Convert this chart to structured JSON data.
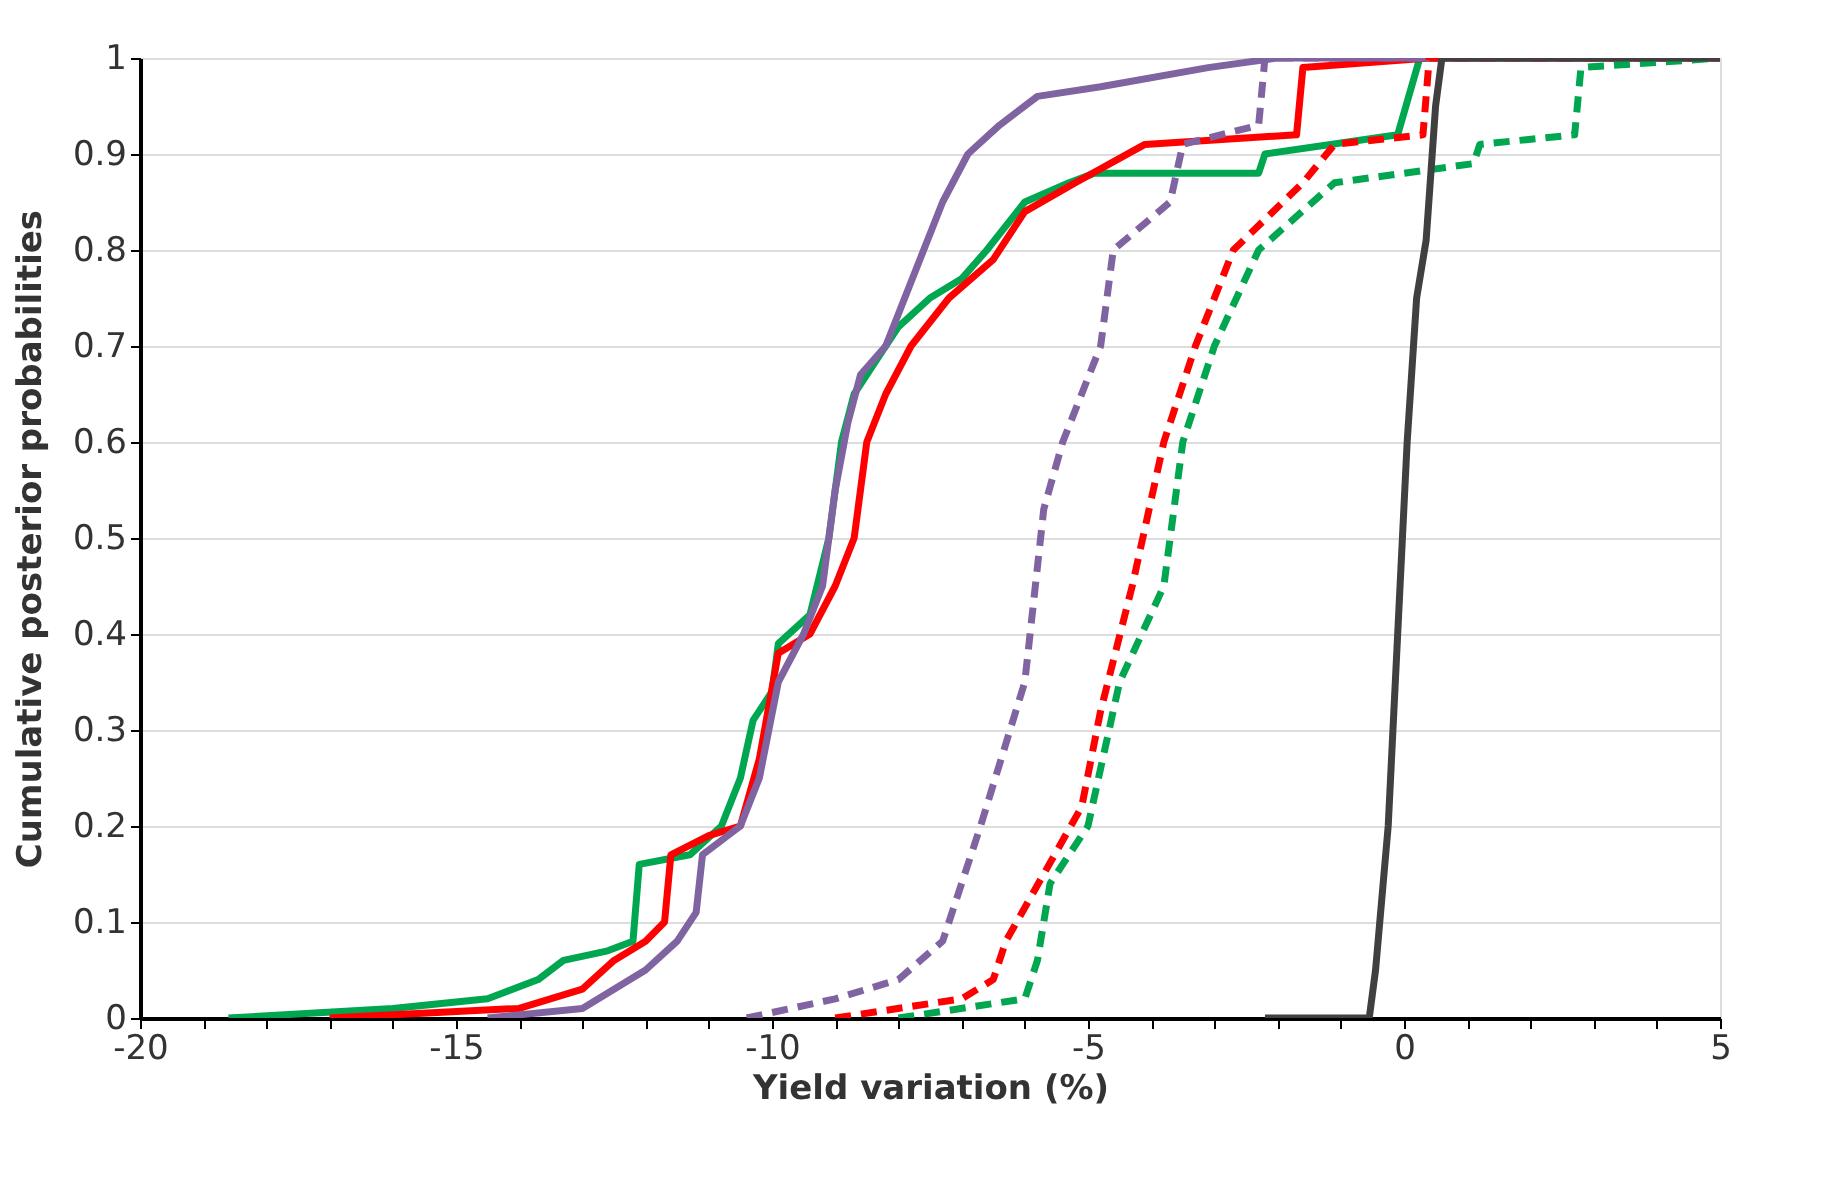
{
  "chart_data": {
    "type": "line",
    "xlabel": "Yield variation (%)",
    "ylabel": "Cumulative posterior probabilities",
    "xlim": [
      -20,
      5
    ],
    "ylim": [
      0,
      1
    ],
    "xticks": [
      -20,
      {
        "value": -19,
        "label": null
      },
      {
        "value": -18,
        "label": null
      },
      {
        "value": -17,
        "label": null
      },
      {
        "value": -16,
        "label": null
      },
      -15,
      {
        "value": -14,
        "label": null
      },
      {
        "value": -13,
        "label": null
      },
      {
        "value": -12,
        "label": null
      },
      {
        "value": -11,
        "label": null
      },
      -10,
      {
        "value": -9,
        "label": null
      },
      {
        "value": -8,
        "label": null
      },
      {
        "value": -7,
        "label": null
      },
      {
        "value": -6,
        "label": null
      },
      -5,
      {
        "value": -4,
        "label": null
      },
      {
        "value": -3,
        "label": null
      },
      {
        "value": -2,
        "label": null
      },
      {
        "value": -1,
        "label": null
      },
      0,
      {
        "value": 1,
        "label": null
      },
      {
        "value": 2,
        "label": null
      },
      {
        "value": 3,
        "label": null
      },
      {
        "value": 4,
        "label": null
      },
      5
    ],
    "yticks": [
      0,
      0.1,
      0.2,
      0.3,
      0.4,
      0.5,
      0.6,
      0.7,
      0.8,
      0.9,
      1
    ],
    "grid": "y",
    "marker": "none",
    "series": [
      {
        "color": "#00a650",
        "line_style": "solid",
        "x": [
          -18.6,
          -16,
          -14.5,
          -13.7,
          -13.3,
          -12.6,
          -12.2,
          -12.1,
          -11.3,
          -10.8,
          -10.5,
          -10.3,
          -10.0,
          -9.9,
          -9.4,
          -9.1,
          -8.9,
          -8.7,
          -8.4,
          -8.0,
          -7.5,
          -7.0,
          -6.6,
          -6.0,
          -5.3,
          -4.9,
          -2.3,
          -2.2,
          -0.1,
          0.25,
          5
        ],
        "values": [
          0,
          0.01,
          0.02,
          0.04,
          0.06,
          0.07,
          0.08,
          0.16,
          0.17,
          0.2,
          0.25,
          0.31,
          0.34,
          0.39,
          0.42,
          0.5,
          0.6,
          0.65,
          0.68,
          0.72,
          0.75,
          0.77,
          0.8,
          0.85,
          0.87,
          0.88,
          0.88,
          0.9,
          0.92,
          1,
          1
        ]
      },
      {
        "color": "#ff0000",
        "line_style": "solid",
        "x": [
          -17,
          -14,
          -13,
          -12.5,
          -12,
          -11.7,
          -11.6,
          -11,
          -10.5,
          -10.2,
          -9.9,
          -9.4,
          -9.0,
          -8.7,
          -8.5,
          -8.2,
          -7.8,
          -7.2,
          -6.5,
          -6.0,
          -5.2,
          -4.1,
          -1.7,
          -1.6,
          0.4,
          5
        ],
        "values": [
          0,
          0.01,
          0.03,
          0.06,
          0.08,
          0.1,
          0.17,
          0.19,
          0.2,
          0.27,
          0.38,
          0.4,
          0.45,
          0.5,
          0.6,
          0.65,
          0.7,
          0.75,
          0.79,
          0.84,
          0.87,
          0.91,
          0.92,
          0.99,
          1,
          1
        ]
      },
      {
        "color": "#8064a2",
        "line_style": "solid",
        "x": [
          -14.5,
          -13,
          -12.5,
          -12,
          -11.5,
          -11.2,
          -11.1,
          -10.5,
          -10.2,
          -9.9,
          -9.5,
          -9.2,
          -9.0,
          -8.8,
          -8.6,
          -8.2,
          -7.9,
          -7.6,
          -7.3,
          -6.9,
          -6.4,
          -5.8,
          -4.8,
          -3.1,
          -2.0,
          5
        ],
        "values": [
          0,
          0.01,
          0.03,
          0.05,
          0.08,
          0.11,
          0.17,
          0.2,
          0.25,
          0.35,
          0.4,
          0.45,
          0.55,
          0.62,
          0.67,
          0.7,
          0.75,
          0.8,
          0.85,
          0.9,
          0.93,
          0.96,
          0.97,
          0.99,
          1,
          1
        ]
      },
      {
        "color": "#8064a2",
        "line_style": "dashed",
        "x": [
          -10.4,
          -9,
          -8,
          -7.3,
          -6.7,
          -6.0,
          -5.7,
          -5.4,
          -4.8,
          -4.6,
          -3.7,
          -3.5,
          -2.3,
          -2.2,
          5
        ],
        "values": [
          0,
          0.02,
          0.04,
          0.08,
          0.2,
          0.35,
          0.53,
          0.6,
          0.7,
          0.8,
          0.85,
          0.91,
          0.93,
          1,
          1
        ]
      },
      {
        "color": "#ff0000",
        "line_style": "dashed",
        "x": [
          -9,
          -7,
          -6.5,
          -6.3,
          -5.7,
          -5.1,
          -4.8,
          -4.3,
          -3.8,
          -3.3,
          -2.7,
          -1.6,
          -1.1,
          0.3,
          0.4,
          5
        ],
        "values": [
          0,
          0.02,
          0.04,
          0.08,
          0.15,
          0.22,
          0.32,
          0.45,
          0.6,
          0.7,
          0.8,
          0.87,
          0.91,
          0.92,
          1,
          1
        ]
      },
      {
        "color": "#00a650",
        "line_style": "dashed",
        "x": [
          -8,
          -6,
          -5.8,
          -5.6,
          -5.0,
          -4.5,
          -3.8,
          -3.5,
          -3.0,
          -2.3,
          -1.1,
          1.1,
          1.2,
          2.7,
          2.8,
          5
        ],
        "values": [
          0,
          0.02,
          0.06,
          0.14,
          0.2,
          0.35,
          0.45,
          0.6,
          0.7,
          0.8,
          0.87,
          0.89,
          0.91,
          0.92,
          0.99,
          1
        ]
      },
      {
        "color": "#404040",
        "line_style": "solid",
        "x": [
          -2.2,
          -0.55,
          -0.45,
          -0.25,
          -0.1,
          0.05,
          0.2,
          0.35,
          0.5,
          0.6,
          5
        ],
        "values": [
          0,
          0,
          0.05,
          0.2,
          0.4,
          0.6,
          0.75,
          0.81,
          0.95,
          1,
          1
        ]
      }
    ]
  }
}
